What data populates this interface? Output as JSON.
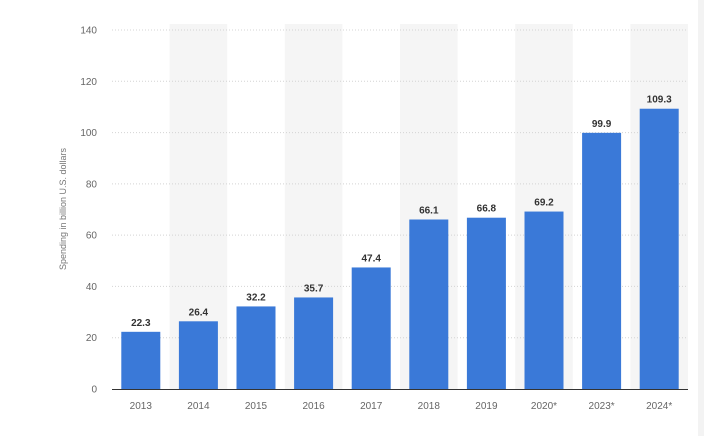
{
  "chart_data": {
    "type": "bar",
    "title": "",
    "xlabel": "",
    "ylabel": "Spending in billion U.S. dollars",
    "categories": [
      "2013",
      "2014",
      "2015",
      "2016",
      "2017",
      "2018",
      "2019",
      "2020*",
      "2023*",
      "2024*"
    ],
    "values": [
      22.3,
      26.4,
      32.2,
      35.7,
      47.4,
      66.1,
      66.8,
      69.2,
      99.9,
      109.3
    ],
    "value_labels": [
      "22.3",
      "26.4",
      "32.2",
      "35.7",
      "47.4",
      "66.1",
      "66.8",
      "69.2",
      "99.9",
      "109.3"
    ],
    "ylim": [
      0,
      140
    ],
    "yticks": [
      0,
      20,
      40,
      60,
      80,
      100,
      120,
      140
    ],
    "grid": true,
    "legend": "none",
    "bar_color": "#3a79d8",
    "band_color": "#f5f5f5"
  }
}
